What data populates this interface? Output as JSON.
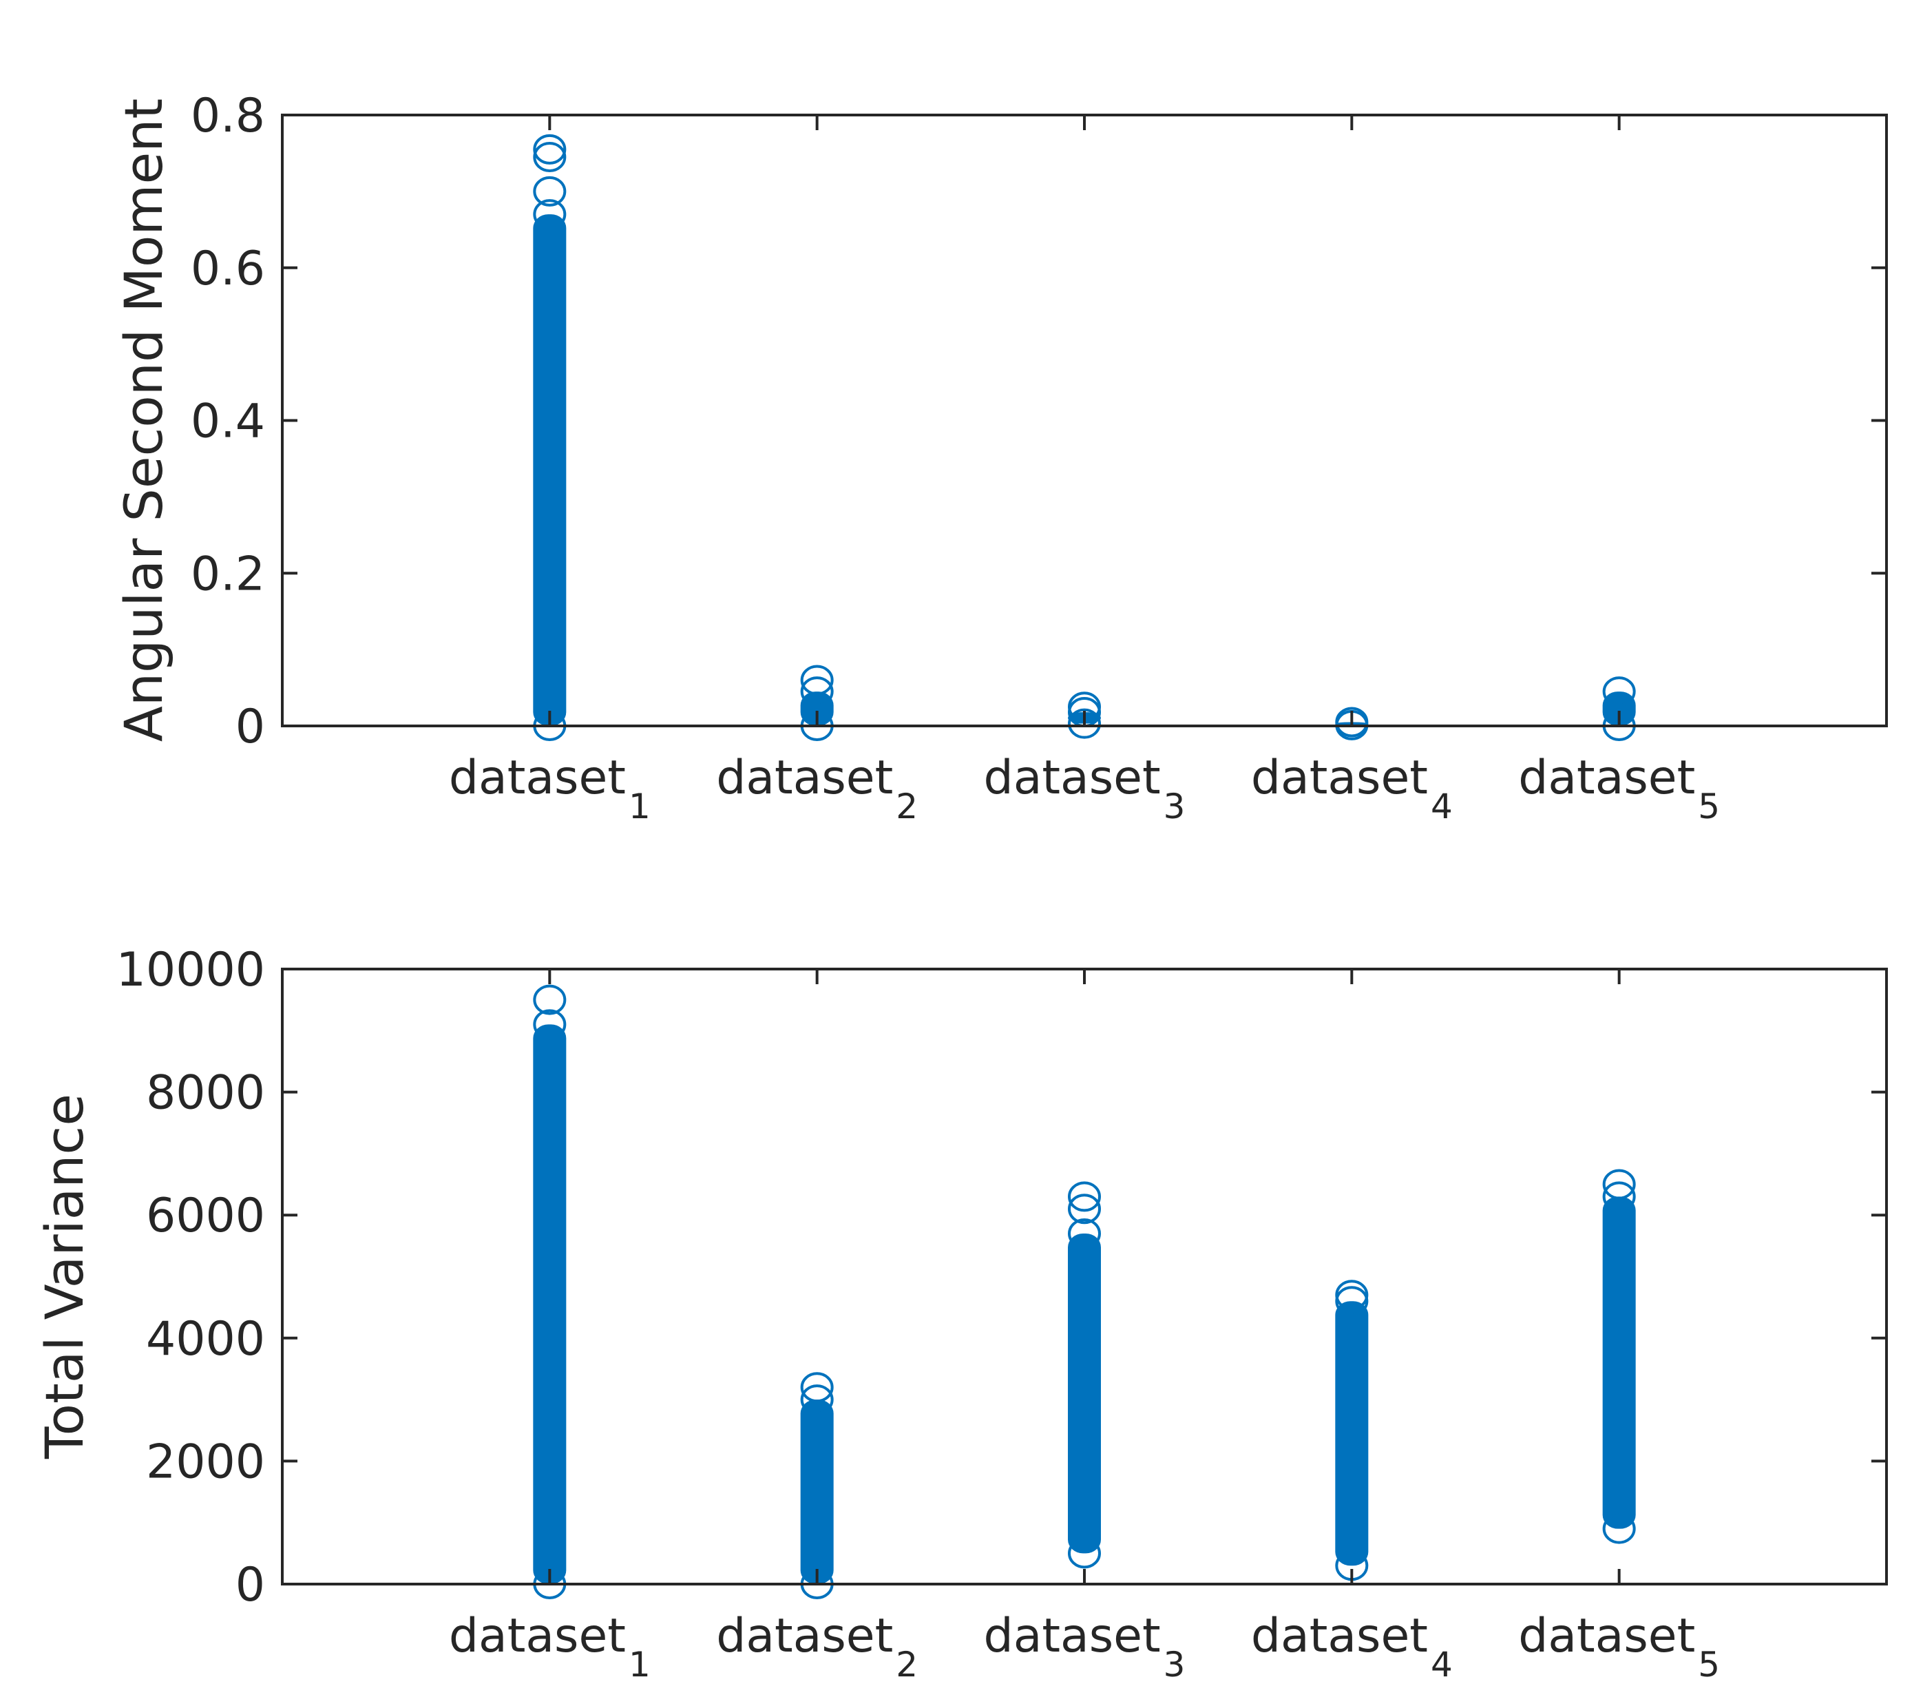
{
  "chart_data": [
    {
      "type": "scatter",
      "title": "",
      "xlabel": "",
      "ylabel": "Angular Second Moment",
      "categories": [
        {
          "base": "dataset",
          "sub": "1"
        },
        {
          "base": "dataset",
          "sub": "2"
        },
        {
          "base": "dataset",
          "sub": "3"
        },
        {
          "base": "dataset",
          "sub": "4"
        },
        {
          "base": "dataset",
          "sub": "5"
        }
      ],
      "ylim": [
        0,
        0.8
      ],
      "yticks": [
        0,
        0.2,
        0.4,
        0.6,
        0.8
      ],
      "ytick_labels": [
        "0",
        "0.2",
        "0.4",
        "0.6",
        "0.8"
      ],
      "grid": false,
      "marker": "circle",
      "color": "#0072BD",
      "series": [
        {
          "category_index": 0,
          "min": 0.0,
          "max": 0.67,
          "outliers": [
            0.7,
            0.745,
            0.755
          ]
        },
        {
          "category_index": 1,
          "min": 0.0,
          "max": 0.045,
          "outliers": [
            0.06
          ]
        },
        {
          "category_index": 2,
          "min": 0.003,
          "max": 0.018,
          "outliers": [
            0.025
          ]
        },
        {
          "category_index": 3,
          "min": 0.001,
          "max": 0.005,
          "outliers": []
        },
        {
          "category_index": 4,
          "min": 0.0,
          "max": 0.045,
          "outliers": []
        }
      ]
    },
    {
      "type": "scatter",
      "title": "",
      "xlabel": "",
      "ylabel": "Total Variance",
      "categories": [
        {
          "base": "dataset",
          "sub": "1"
        },
        {
          "base": "dataset",
          "sub": "2"
        },
        {
          "base": "dataset",
          "sub": "3"
        },
        {
          "base": "dataset",
          "sub": "4"
        },
        {
          "base": "dataset",
          "sub": "5"
        }
      ],
      "ylim": [
        0,
        10000
      ],
      "yticks": [
        0,
        2000,
        4000,
        6000,
        8000,
        10000
      ],
      "ytick_labels": [
        "0",
        "2000",
        "4000",
        "6000",
        "8000",
        "10000"
      ],
      "grid": false,
      "marker": "circle",
      "color": "#0072BD",
      "series": [
        {
          "category_index": 0,
          "min": 0,
          "max": 9100,
          "outliers": [
            9500
          ]
        },
        {
          "category_index": 1,
          "min": 0,
          "max": 3000,
          "outliers": [
            3200
          ]
        },
        {
          "category_index": 2,
          "min": 500,
          "max": 5700,
          "outliers": [
            6100,
            6300
          ]
        },
        {
          "category_index": 3,
          "min": 300,
          "max": 4600,
          "outliers": [
            4700
          ]
        },
        {
          "category_index": 4,
          "min": 900,
          "max": 6300,
          "outliers": [
            6500
          ]
        }
      ]
    }
  ]
}
